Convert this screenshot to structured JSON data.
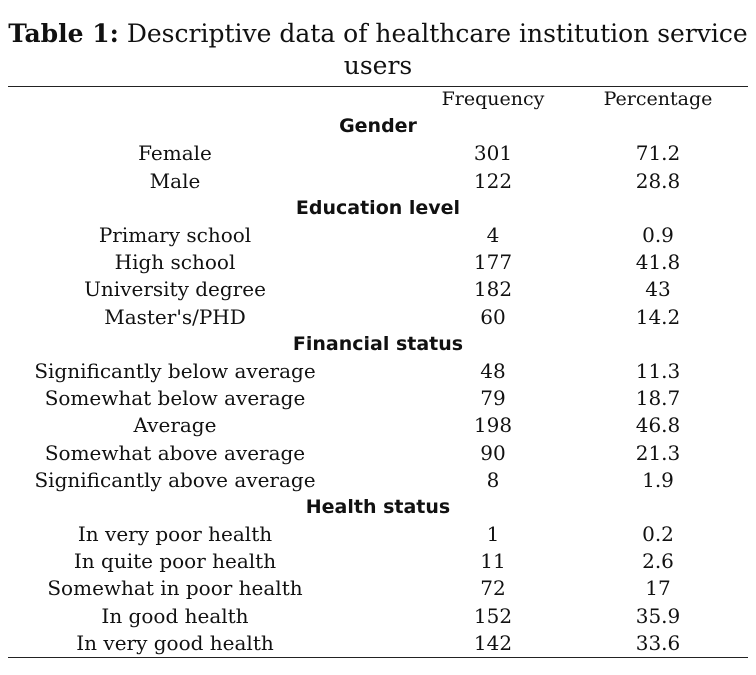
{
  "caption": {
    "label": "Table 1:",
    "text": "Descriptive data of healthcare institution service users"
  },
  "columns": [
    "",
    "Frequency",
    "Percentage"
  ],
  "sections": [
    {
      "title": "Gender",
      "rows": [
        {
          "label": "Female",
          "frequency": "301",
          "percentage": "71.2"
        },
        {
          "label": "Male",
          "frequency": "122",
          "percentage": "28.8"
        }
      ]
    },
    {
      "title": "Education level",
      "rows": [
        {
          "label": "Primary school",
          "frequency": "4",
          "percentage": "0.9"
        },
        {
          "label": "High school",
          "frequency": "177",
          "percentage": "41.8"
        },
        {
          "label": "University degree",
          "frequency": "182",
          "percentage": "43"
        },
        {
          "label": "Master's/PHD",
          "frequency": "60",
          "percentage": "14.2"
        }
      ]
    },
    {
      "title": "Financial status",
      "rows": [
        {
          "label": "Significantly below average",
          "frequency": "48",
          "percentage": "11.3"
        },
        {
          "label": "Somewhat below average",
          "frequency": "79",
          "percentage": "18.7"
        },
        {
          "label": "Average",
          "frequency": "198",
          "percentage": "46.8"
        },
        {
          "label": "Somewhat above average",
          "frequency": "90",
          "percentage": "21.3"
        },
        {
          "label": "Significantly above average",
          "frequency": "8",
          "percentage": "1.9"
        }
      ]
    },
    {
      "title": "Health status",
      "rows": [
        {
          "label": "In very poor health",
          "frequency": "1",
          "percentage": "0.2"
        },
        {
          "label": "In quite poor health",
          "frequency": "11",
          "percentage": "2.6"
        },
        {
          "label": "Somewhat in poor health",
          "frequency": "72",
          "percentage": "17"
        },
        {
          "label": "In good health",
          "frequency": "152",
          "percentage": "35.9"
        },
        {
          "label": "In very good health",
          "frequency": "142",
          "percentage": "33.6"
        }
      ]
    }
  ]
}
